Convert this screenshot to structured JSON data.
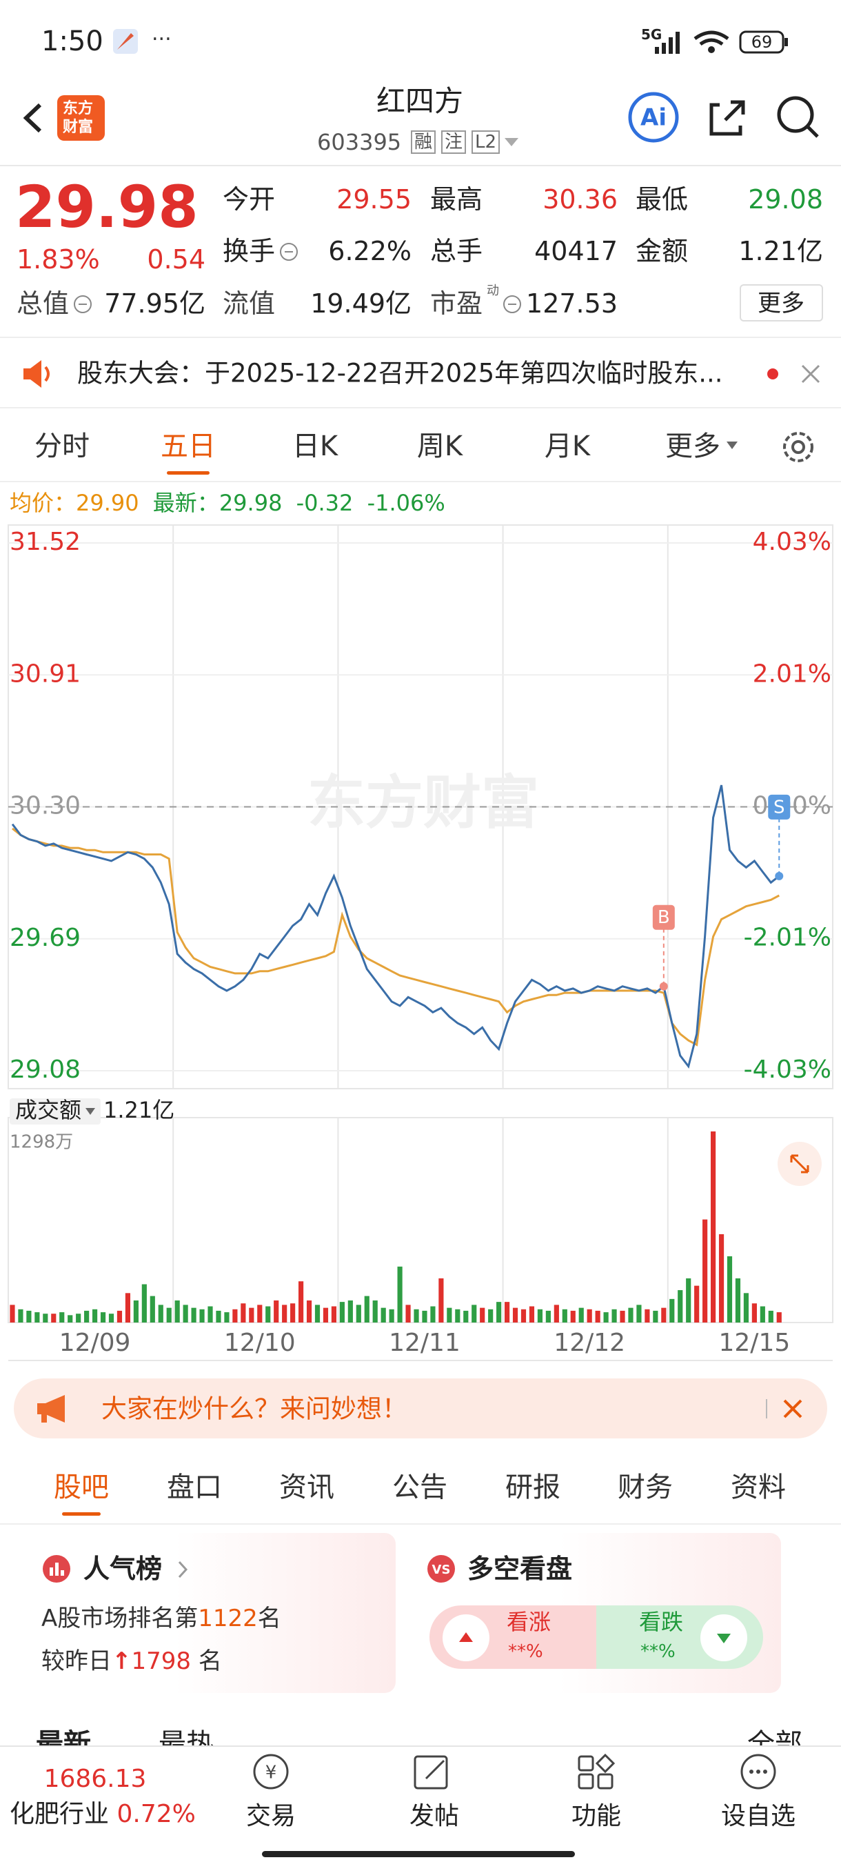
{
  "status_bar": {
    "time": "1:50",
    "network": "5G",
    "battery": "69"
  },
  "header": {
    "logo": [
      "东方",
      "财富"
    ],
    "title": "红四方",
    "code": "603395",
    "tags": [
      "融",
      "注",
      "L2"
    ]
  },
  "quote": {
    "price": "29.98",
    "change_pct": "1.83%",
    "change": "0.54",
    "fields": [
      {
        "label": "今开",
        "value": "29.55"
      },
      {
        "label": "最高",
        "value": "30.36"
      },
      {
        "label": "最低",
        "value": "29.08"
      },
      {
        "label": "换手",
        "value": "6.22%"
      },
      {
        "label": "总手",
        "value": "40417"
      },
      {
        "label": "金额",
        "value": "1.21亿"
      },
      {
        "label": "总值",
        "value": "77.95亿"
      },
      {
        "label": "流值",
        "value": "19.49亿"
      },
      {
        "label": "市盈",
        "value": "127.53"
      }
    ],
    "pe_superscript": "动",
    "more": "更多"
  },
  "notice": {
    "text": "股东大会：于2025-12-22召开2025年第四次临时股东..."
  },
  "period_tabs": {
    "items": [
      "分时",
      "五日",
      "日K",
      "周K",
      "月K",
      "更多"
    ],
    "active": 1
  },
  "legend": {
    "avg_label": "均价：",
    "avg": "29.90",
    "latest_label": "最新：",
    "latest": "29.98",
    "change": "-0.32",
    "change_pct": "-1.06%"
  },
  "chart_data": [
    {
      "type": "line",
      "watermark": "东方财富",
      "grid": true,
      "prev_close": 30.3,
      "ylim": [
        29.08,
        31.52
      ],
      "yticks": [
        31.52,
        30.91,
        {
          "value": 30.3,
          "label": "30.30"
        },
        29.69,
        29.08
      ],
      "y2lim": [
        -4.03,
        4.03
      ],
      "y2ticks": [
        {
          "value": 4.03,
          "label": "4.03%"
        },
        {
          "value": 2.01,
          "label": "2.01%"
        },
        {
          "value": 0,
          "label": "0.00%"
        },
        {
          "value": -2.01,
          "label": "-2.01%"
        },
        {
          "value": -4.03,
          "label": "-4.03%"
        }
      ],
      "series": [
        {
          "color": "#3a6ea8",
          "values": [
            30.22,
            30.17,
            30.15,
            30.14,
            30.12,
            30.13,
            30.11,
            30.1,
            30.09,
            30.08,
            30.07,
            30.06,
            30.05,
            30.07,
            30.09,
            30.08,
            30.06,
            30.02,
            29.95,
            29.85,
            29.62,
            29.58,
            29.55,
            29.53,
            29.5,
            29.47,
            29.45,
            29.47,
            29.5,
            29.55,
            29.62,
            29.6,
            29.65,
            29.7,
            29.75,
            29.78,
            29.85,
            29.8,
            29.9,
            29.98,
            29.88,
            29.75,
            29.65,
            29.55,
            29.5,
            29.45,
            29.4,
            29.38,
            29.42,
            29.4,
            29.38,
            29.35,
            29.37,
            29.33,
            29.3,
            29.28,
            29.25,
            29.28,
            29.22,
            29.18,
            29.3,
            29.4,
            29.45,
            29.5,
            29.48,
            29.45,
            29.47,
            29.45,
            29.46,
            29.44,
            29.45,
            29.47,
            29.46,
            29.45,
            29.47,
            29.46,
            29.45,
            29.46,
            29.44,
            29.47,
            29.3,
            29.15,
            29.1,
            29.25,
            29.7,
            30.25,
            30.4,
            30.1,
            30.05,
            30.02,
            30.05,
            30.0,
            29.95,
            29.98,
            null,
            null,
            null,
            null,
            null,
            null
          ]
        },
        {
          "color": "#e5a33a",
          "values": [
            30.2,
            30.17,
            30.15,
            30.14,
            30.13,
            30.12,
            30.12,
            30.11,
            30.11,
            30.1,
            30.1,
            30.09,
            30.09,
            30.09,
            30.09,
            30.09,
            30.08,
            30.08,
            30.08,
            30.06,
            29.72,
            29.65,
            29.6,
            29.58,
            29.56,
            29.55,
            29.54,
            29.53,
            29.53,
            29.53,
            29.54,
            29.54,
            29.55,
            29.56,
            29.57,
            29.58,
            29.59,
            29.6,
            29.61,
            29.63,
            29.8,
            29.7,
            29.64,
            29.6,
            29.58,
            29.56,
            29.54,
            29.52,
            29.51,
            29.5,
            29.49,
            29.48,
            29.47,
            29.46,
            29.45,
            29.44,
            29.43,
            29.42,
            29.41,
            29.4,
            29.35,
            29.38,
            29.4,
            29.41,
            29.42,
            29.43,
            29.43,
            29.44,
            29.44,
            29.44,
            29.45,
            29.45,
            29.45,
            29.45,
            29.45,
            29.45,
            29.45,
            29.45,
            29.45,
            29.44,
            29.3,
            29.25,
            29.22,
            29.2,
            29.5,
            29.7,
            29.78,
            29.8,
            29.82,
            29.84,
            29.85,
            29.86,
            29.87,
            29.89,
            null,
            null,
            null,
            null,
            null,
            null
          ]
        }
      ],
      "annotations": [
        {
          "text": "B",
          "point": 79,
          "color": "#ef8a7e"
        },
        {
          "text": "S",
          "point": 93,
          "color": "#5b9be0"
        }
      ]
    },
    {
      "type": "bar",
      "title": "成交额",
      "total": "1.21亿",
      "up_color": "#e0302c",
      "down_color": "#2f9e44",
      "ylim": [
        0,
        1298
      ],
      "yticks": [
        {
          "value": 1298,
          "label": "1298万"
        }
      ],
      "categories": [
        null,
        null,
        null,
        null,
        null,
        null,
        null,
        null,
        null,
        null,
        "12/09",
        null,
        null,
        null,
        null,
        null,
        null,
        null,
        null,
        null,
        null,
        null,
        null,
        null,
        null,
        null,
        null,
        null,
        null,
        null,
        "12/10",
        null,
        null,
        null,
        null,
        null,
        null,
        null,
        null,
        null,
        null,
        null,
        null,
        null,
        null,
        null,
        null,
        null,
        null,
        null,
        "12/11",
        null,
        null,
        null,
        null,
        null,
        null,
        null,
        null,
        null,
        null,
        null,
        null,
        null,
        null,
        null,
        null,
        null,
        null,
        null,
        "12/12",
        null,
        null,
        null,
        null,
        null,
        null,
        null,
        null,
        null,
        null,
        null,
        null,
        null,
        null,
        null,
        null,
        null,
        null,
        null,
        "12/15",
        null,
        null,
        null,
        null,
        null,
        null,
        null,
        null,
        null
      ],
      "values": [
        120,
        90,
        80,
        70,
        60,
        60,
        70,
        50,
        60,
        80,
        90,
        70,
        60,
        80,
        200,
        150,
        260,
        180,
        120,
        100,
        150,
        120,
        100,
        90,
        110,
        80,
        70,
        90,
        130,
        100,
        120,
        110,
        150,
        120,
        130,
        280,
        150,
        120,
        100,
        110,
        140,
        150,
        120,
        180,
        150,
        100,
        90,
        380,
        120,
        90,
        80,
        110,
        300,
        100,
        90,
        80,
        120,
        100,
        90,
        140,
        140,
        100,
        90,
        110,
        90,
        80,
        120,
        90,
        80,
        100,
        90,
        80,
        70,
        90,
        80,
        100,
        120,
        90,
        80,
        100,
        160,
        220,
        300,
        250,
        700,
        1298,
        600,
        450,
        300,
        200,
        130,
        110,
        80,
        70,
        null,
        null,
        null,
        null,
        null,
        null
      ]
    }
  ],
  "banner": {
    "text": "大家在炒什么？来问妙想！"
  },
  "section_tabs": {
    "items": [
      "股吧",
      "盘口",
      "资讯",
      "公告",
      "研报",
      "财务",
      "资料"
    ],
    "active": 0
  },
  "popularity": {
    "title": "人气榜",
    "rank_prefix": "A股市场排名第",
    "rank": "1122",
    "rank_suffix": "名",
    "change_prefix": "较昨日",
    "change": "1798",
    "change_suffix": "名"
  },
  "sentiment": {
    "title": "多空看盘",
    "bull": "看涨",
    "bull_pct": "**%",
    "bear": "看跌",
    "bear_pct": "**%"
  },
  "feed_tabs": {
    "items": [
      "最新",
      "最热"
    ],
    "filter": "全部"
  },
  "bottom_bar": {
    "index_value": "1686.13",
    "industry": "化肥行业",
    "industry_change": "0.72%",
    "nav": [
      "交易",
      "发帖",
      "功能",
      "设自选"
    ]
  }
}
